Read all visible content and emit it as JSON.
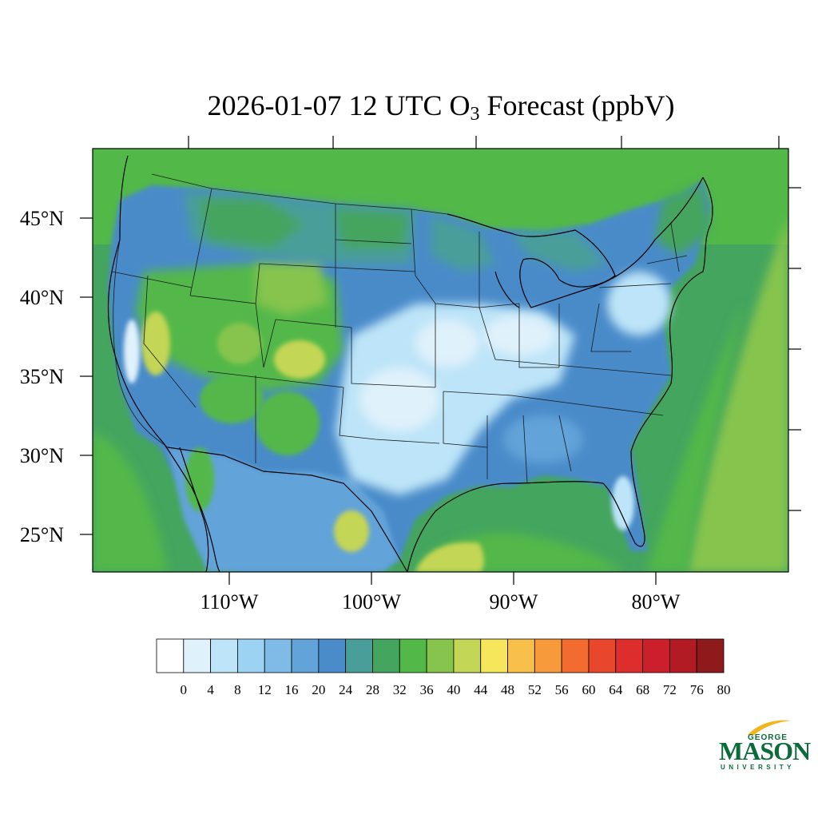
{
  "title": {
    "prefix": "2026-01-07 12 UTC O",
    "subscript": "3",
    "suffix": " Forecast (ppbV)"
  },
  "map": {
    "lat_labels": [
      "45°N",
      "40°N",
      "35°N",
      "30°N",
      "25°N"
    ],
    "lon_labels": [
      "110°W",
      "100°W",
      "90°W",
      "80°W"
    ],
    "ocean_color": "#44a55e",
    "land_base_color": "#4a8fcf"
  },
  "colorbar": {
    "colors": [
      "#ffffff",
      "#dff1fb",
      "#bde4f8",
      "#9cd3f3",
      "#7fbbe6",
      "#62a3d9",
      "#4a8bc9",
      "#4a9e9a",
      "#44a55e",
      "#52b848",
      "#86c44d",
      "#c4d655",
      "#f6e65b",
      "#f8c04a",
      "#f69a3c",
      "#f36c2f",
      "#e9472c",
      "#dd2e2d",
      "#cb202b",
      "#b21b23",
      "#8e1a1c"
    ],
    "labels": [
      "0",
      "4",
      "8",
      "12",
      "16",
      "20",
      "24",
      "28",
      "32",
      "36",
      "40",
      "44",
      "48",
      "52",
      "56",
      "60",
      "64",
      "68",
      "72",
      "76",
      "80"
    ]
  },
  "logo": {
    "line1": "GEORGE",
    "line2": "MASON",
    "line3": "UNIVERSITY",
    "color": "#0b6b3a",
    "accent": "#f2b51c"
  }
}
